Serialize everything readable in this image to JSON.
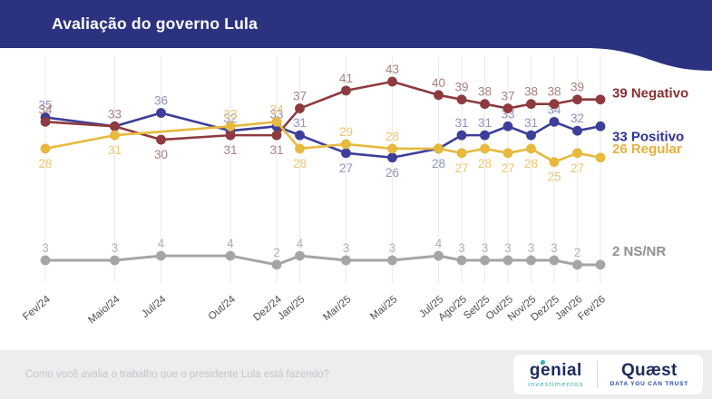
{
  "header": {
    "title": "Avaliação do governo Lula",
    "bg_color": "#2b3380"
  },
  "footer": {
    "question": "Como você avalia o trabalho que o presidente Lula está fazendo?",
    "logos": {
      "genial_name": "genial",
      "genial_sub": "investimentos",
      "quaest_name": "Quæst",
      "quaest_tagline": "DATA YOU CAN TRUST"
    }
  },
  "chart_data": {
    "type": "line",
    "title": "Avaliação do governo Lula",
    "categories": [
      "Fev/24",
      "Maio/24",
      "Jul/24",
      "Out/24",
      "Dez/24",
      "Jan/25",
      "Mar/25",
      "Mai/25",
      "Jul/25",
      "Ago/25",
      "Set/25",
      "Out/25",
      "Nov/25",
      "Dez/25",
      "Jan/26",
      "Fev/26"
    ],
    "month_offsets": [
      0,
      3,
      5,
      8,
      10,
      11,
      13,
      15,
      17,
      18,
      19,
      20,
      21,
      22,
      23,
      24
    ],
    "ylim": [
      0,
      50
    ],
    "grid": true,
    "grid_color": "#ececec",
    "axis_label_color": "#4d4d4d",
    "legend_position": "right-of-last-point",
    "series": [
      {
        "name": "Positivo",
        "slug": "positivo",
        "color": "#3c3f99",
        "label_color": "#9093bd",
        "end_label_color": "#2e3193",
        "values": [
          35,
          33,
          36,
          32,
          33,
          31,
          27,
          26,
          28,
          31,
          31,
          33,
          31,
          34,
          32,
          33
        ],
        "label_pos": [
          "a",
          null,
          "a",
          "a",
          "a",
          "a",
          "b",
          "b",
          "b",
          "a",
          "a",
          "a",
          "a",
          "a",
          "a",
          null
        ],
        "end_dy": 12
      },
      {
        "name": "Negativo",
        "slug": "negativo",
        "color": "#8e3a3e",
        "label_color": "#a8827f",
        "end_label_color": "#8b2f35",
        "values": [
          34,
          33,
          30,
          31,
          31,
          37,
          41,
          43,
          40,
          39,
          38,
          37,
          38,
          38,
          39,
          39
        ],
        "label_pos": [
          "a",
          "a",
          "b",
          "b",
          "b",
          "a",
          "a",
          "a",
          "a",
          "a",
          "a",
          "a",
          "a",
          "a",
          "a",
          null
        ],
        "end_dy": -6
      },
      {
        "name": "Regular",
        "slug": "regular",
        "color": "#e7b93d",
        "label_color": "#edc76e",
        "end_label_color": "#e5b13a",
        "values": [
          28,
          31,
          null,
          33,
          34,
          28,
          29,
          28,
          28,
          27,
          28,
          27,
          28,
          25,
          27,
          26
        ],
        "label_pos": [
          "b",
          "b",
          null,
          "a",
          "a",
          "b",
          "a",
          "a",
          null,
          "b",
          "b",
          "b",
          "b",
          "b",
          "b",
          null
        ],
        "end_dy": -9
      },
      {
        "name": "NS/NR",
        "slug": "ns-nr",
        "color": "#a5a5a5",
        "label_color": "#b3b3b3",
        "end_label_color": "#8f8f8f",
        "values": [
          3,
          3,
          4,
          4,
          2,
          4,
          3,
          3,
          4,
          3,
          3,
          3,
          3,
          3,
          2,
          2
        ],
        "label_pos": [
          "a",
          "a",
          "a",
          "a",
          "a",
          "a",
          "a",
          "a",
          "a",
          "a",
          "a",
          "a",
          "a",
          "a",
          "a",
          null
        ],
        "end_dy": -14
      }
    ]
  }
}
